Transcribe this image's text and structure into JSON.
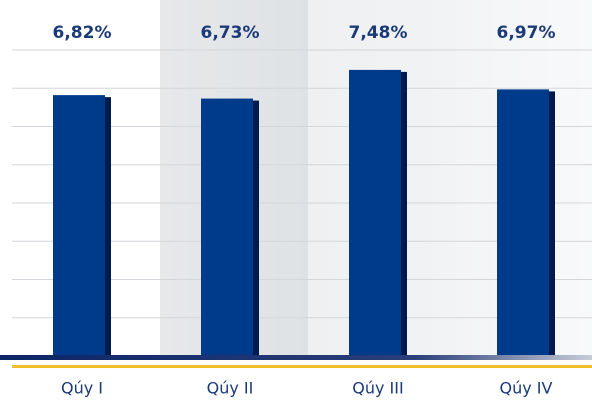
{
  "chart_data": {
    "type": "bar",
    "categories": [
      "Qúy I",
      "Qúy II",
      "Qúy III",
      "Qúy IV"
    ],
    "values": [
      6.82,
      6.73,
      7.48,
      6.97
    ],
    "value_labels": [
      "6,82%",
      "6,73%",
      "7,48%",
      "6,97%"
    ],
    "color": "#003a8a",
    "ylim": [
      0,
      8
    ],
    "yticks": [
      0,
      1,
      2,
      3,
      4,
      5,
      6,
      7,
      8
    ],
    "grid": true
  }
}
